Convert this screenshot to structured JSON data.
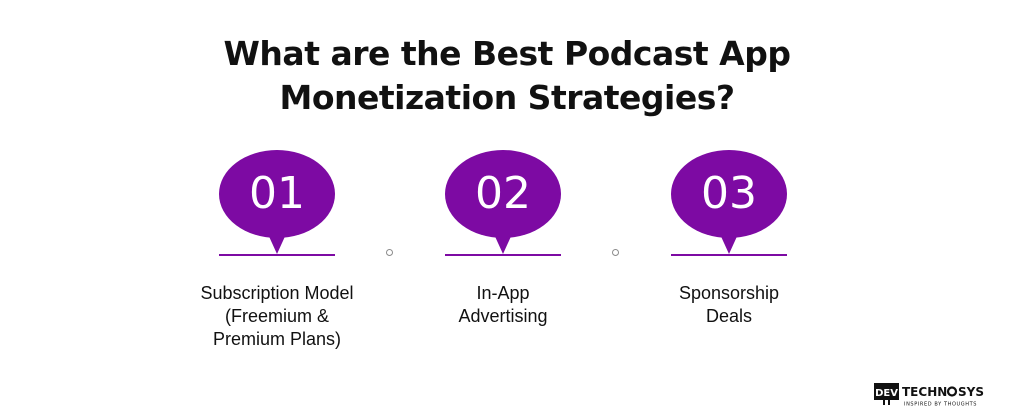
{
  "title": {
    "line1": "What are the Best Podcast App",
    "line2": "Monetization Strategies?"
  },
  "steps": [
    {
      "number": "01",
      "label_lines": [
        "Subscription Model",
        "(Freemium &",
        "Premium Plans)"
      ]
    },
    {
      "number": "02",
      "label_lines": [
        "In-App",
        "Advertising"
      ]
    },
    {
      "number": "03",
      "label_lines": [
        "Sponsorship",
        "Deals"
      ]
    }
  ],
  "logo": {
    "mark": "DEV",
    "name_part1": "TECHN",
    "name_part2": "SYS",
    "tagline": "INSPIRED BY THOUGHTS"
  },
  "colors": {
    "accent": "#7d0aa3",
    "text": "#111111",
    "dot": "#8c8c8c"
  }
}
